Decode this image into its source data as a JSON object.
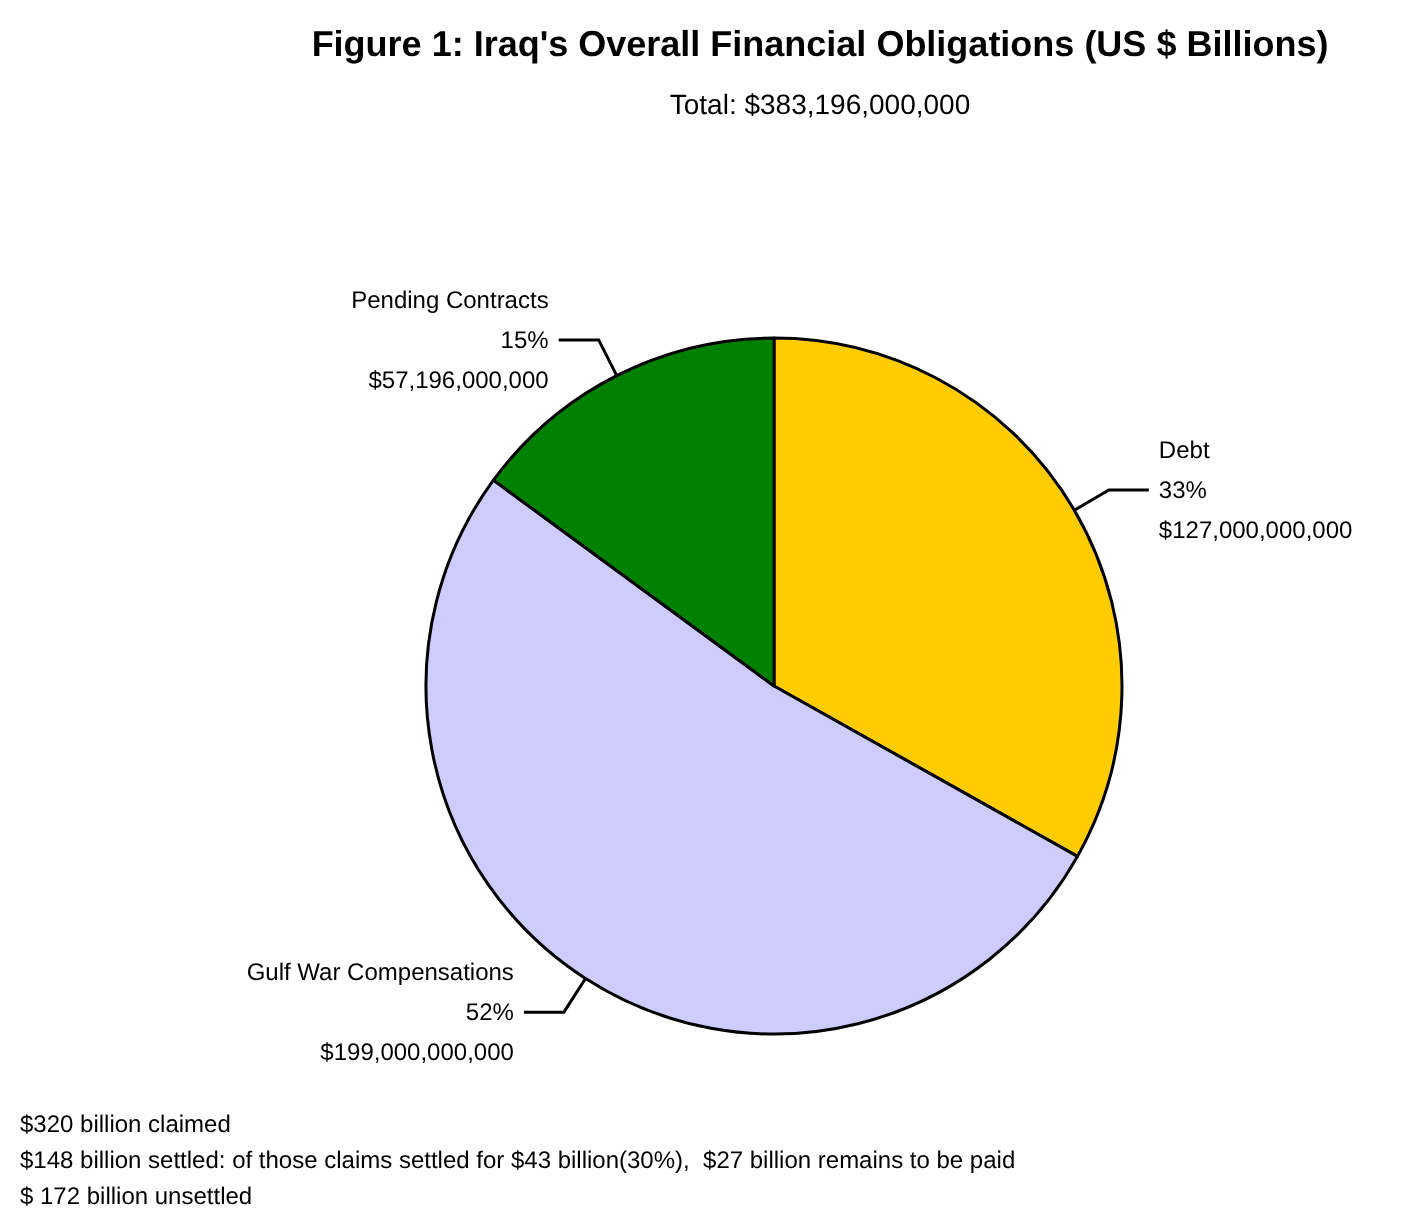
{
  "chart_data": {
    "type": "pie",
    "title": "Figure 1: Iraq's Overall Financial Obligations (US $ Billions)",
    "subtitle": "Total: $383,196,000,000",
    "categories": [
      "Debt",
      "Gulf War Compensations",
      "Pending Contracts"
    ],
    "values": [
      127000000000,
      199000000000,
      57196000000
    ],
    "value_labels": [
      "33%\n$127,000,000,000",
      "52%\n$199,000,000,000",
      "15%\n$57,196,000,000"
    ],
    "colors": [
      "#ffcc00",
      "#ccccff",
      "#008000"
    ],
    "legend": false,
    "annotations": [
      "$320 billion claimed",
      "$148 billion settled: of those claims settled for $43 billion(30%),  $27 billion remains to be paid",
      "$ 172 billion unsettled"
    ]
  }
}
